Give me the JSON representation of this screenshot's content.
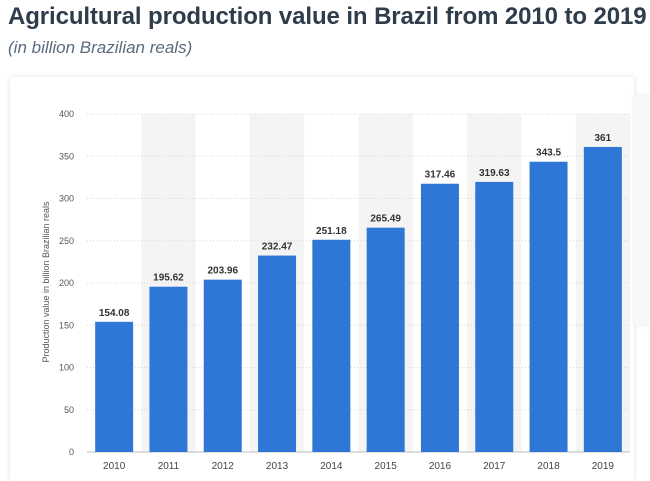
{
  "title": "Agricultural production value in Brazil from 2010 to 2019",
  "subtitle": "(in billion Brazilian reals)",
  "colors": {
    "bar": "#2e77d7",
    "stripe": "#f4f4f4",
    "grid": "#d6d6d6",
    "title": "#2f3c4b"
  },
  "chart_data": {
    "type": "bar",
    "title": "",
    "xlabel": "",
    "ylabel": "Production value in billion Brazilian reals",
    "categories": [
      "2010",
      "2011",
      "2012",
      "2013",
      "2014",
      "2015",
      "2016",
      "2017",
      "2018",
      "2019"
    ],
    "values": [
      154.08,
      195.62,
      203.96,
      232.47,
      251.18,
      265.49,
      317.46,
      319.63,
      343.5,
      361
    ],
    "value_labels": [
      "154.08",
      "195.62",
      "203.96",
      "232.47",
      "251.18",
      "265.49",
      "317.46",
      "319.63",
      "343.5",
      "361"
    ],
    "ylim": [
      0,
      400
    ],
    "yticks": [
      0,
      50,
      100,
      150,
      200,
      250,
      300,
      350,
      400
    ],
    "grid": true
  }
}
